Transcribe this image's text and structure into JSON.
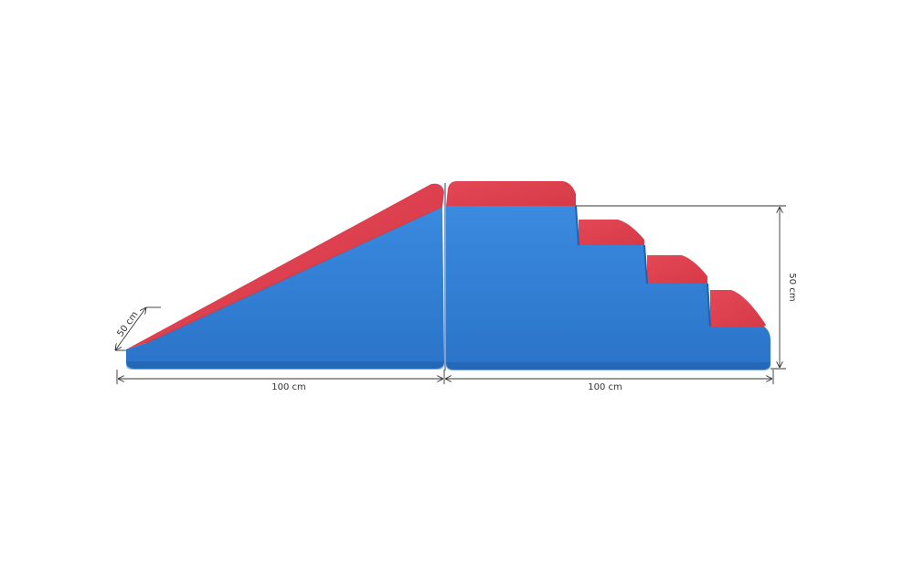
{
  "dimensions": {
    "depth_label": "50 cm",
    "ramp_length_label": "100 cm",
    "stairs_length_label": "100 cm",
    "height_label": "50 cm"
  },
  "colors": {
    "blue": "#2f7fd6",
    "blue_dark": "#1f63b3",
    "red": "#e0404d",
    "red_dark": "#c82f3c",
    "line": "#333333",
    "background": "#ffffff"
  }
}
